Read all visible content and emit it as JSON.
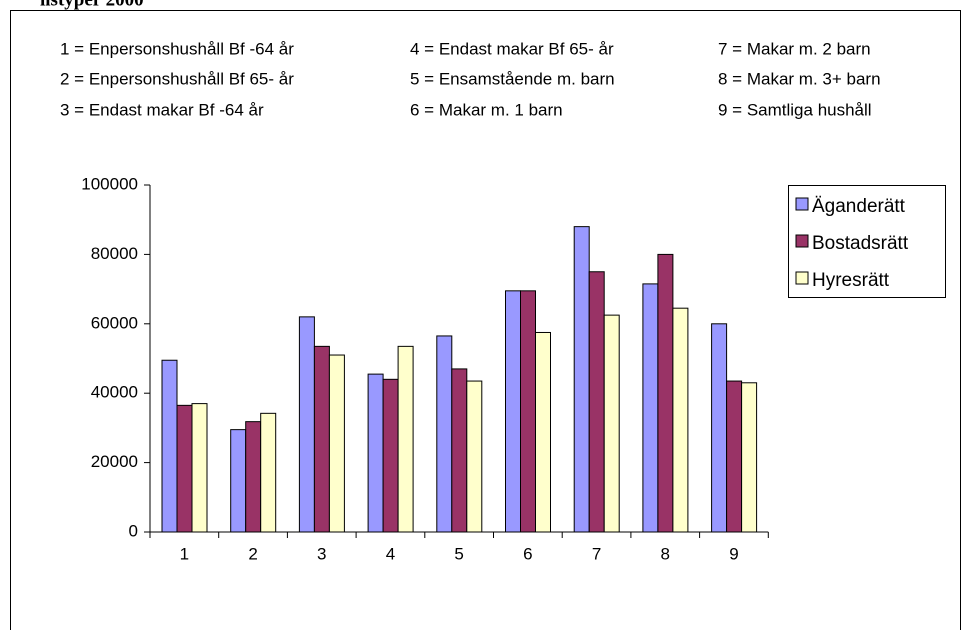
{
  "chart_data": {
    "type": "bar",
    "title": "ilstyper 2000",
    "key": [
      "1 = Enpersonshushåll Bf -64 år",
      "2 = Enpersonshushåll Bf 65- år",
      "3 = Endast makar Bf -64 år",
      "4 = Endast makar Bf 65- år",
      "5 = Ensamstående m. barn",
      "6 = Makar m. 1 barn",
      "7 = Makar m. 2 barn",
      "8 = Makar m. 3+ barn",
      "9 = Samtliga hushåll"
    ],
    "categories": [
      "1",
      "2",
      "3",
      "4",
      "5",
      "6",
      "7",
      "8",
      "9"
    ],
    "series": [
      {
        "name": "Äganderätt",
        "color": "#9999ff",
        "values": [
          49500,
          29500,
          62000,
          45500,
          56500,
          69500,
          88000,
          71500,
          60000
        ]
      },
      {
        "name": "Bostadsrätt",
        "color": "#993366",
        "values": [
          36500,
          31800,
          53500,
          44000,
          47000,
          69500,
          75000,
          80000,
          43500
        ]
      },
      {
        "name": "Hyresrätt",
        "color": "#ffffcc",
        "values": [
          37000,
          34200,
          51000,
          53500,
          43500,
          57500,
          62500,
          64500,
          43000
        ]
      }
    ],
    "ylim": [
      0,
      100000
    ],
    "yticks": [
      0,
      20000,
      40000,
      60000,
      80000,
      100000
    ],
    "legend": "right"
  }
}
